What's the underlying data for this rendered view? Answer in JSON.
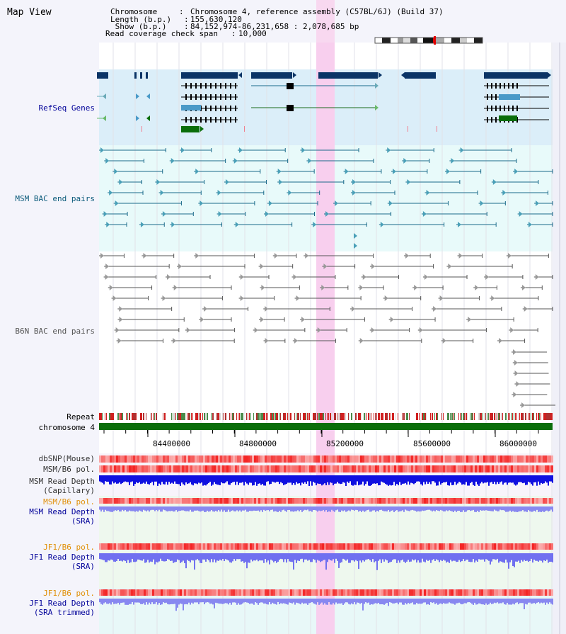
{
  "app": {
    "title": "Map View"
  },
  "header": {
    "rows": [
      {
        "key": "Chromosome    ",
        "value": "Chromosome 4, reference assembly (C57BL/6J) (Build 37)"
      },
      {
        "key": "Length (b.p.) ",
        "value": "155,630,120"
      },
      {
        "key": " Show (b.p.) ",
        "value": "84,152,974-86,231,658 : 2,078,685 bp"
      },
      {
        "key": "Read coverage check span ",
        "value": "10,000"
      }
    ]
  },
  "tracks": {
    "refseq": "RefSeq Genes",
    "msm_bac": "MSM BAC end pairs",
    "b6n_bac": "B6N BAC end pairs",
    "repeat": "Repeat",
    "chromosome": "chromosome 4",
    "dbsnp": "dbSNP(Mouse)",
    "msm_b6_pol": "MSM/B6 pol.",
    "msm_depth_cap_1": "MSM Read Depth",
    "msm_depth_cap_2": "(Capillary)",
    "msm_b6_pol_2": "MSM/B6 pol.",
    "msm_depth_sra_1": "MSM Read Depth",
    "msm_depth_sra_2": "(SRA)",
    "jf1_b6_pol": "JF1/B6 pol.",
    "jf1_depth_sra_1": "JF1 Read Depth",
    "jf1_depth_sra_2": "(SRA)",
    "jf1_b6_pol_2": "JF1/B6 pol.",
    "jf1_depth_trim_1": "JF1 Read Depth",
    "jf1_depth_trim_2": "(SRA trimmed)"
  },
  "axis": {
    "ticks": [
      "84400000",
      "84800000",
      "85200000",
      "85600000",
      "86000000"
    ]
  },
  "colors": {
    "refseq_bg": "#dbeef9",
    "msm_bg": "#e8fafa",
    "highlight": "#f8d8f0",
    "dark_blue": "#0a3466",
    "chrom_green": "#0a6e0a",
    "label_blue": "#000099",
    "label_teal": "#0a5a7a",
    "label_orange": "#e0900a"
  }
}
